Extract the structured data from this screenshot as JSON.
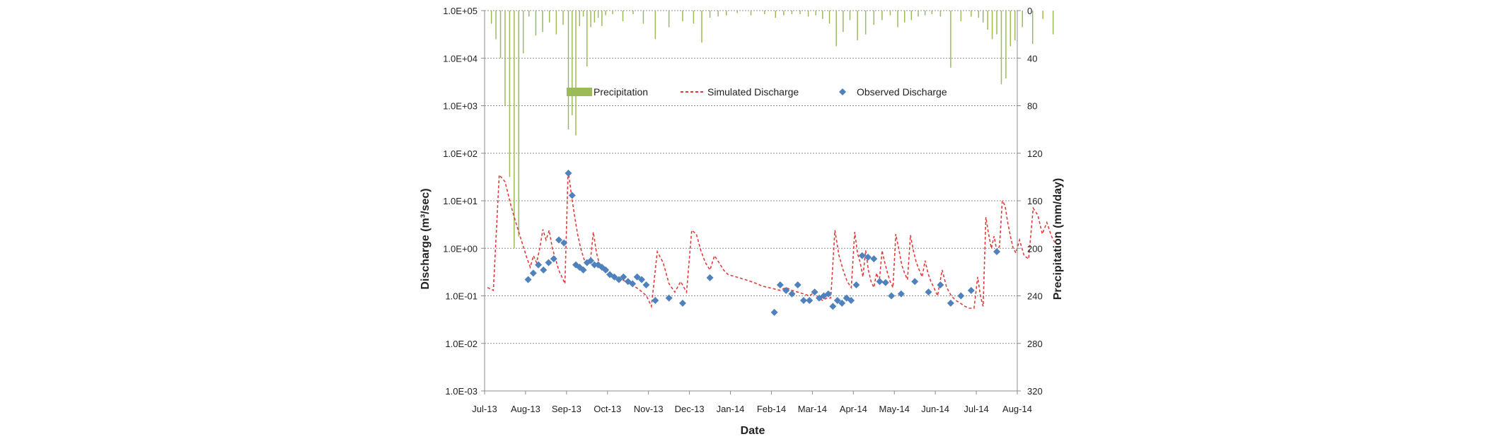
{
  "chart_data": {
    "type": "line",
    "xlabel": "Date",
    "ylabel": "Discharge (m³/sec)",
    "y2label": "Precipitation (mm/day)",
    "x_ticks": [
      "Jul-13",
      "Aug-13",
      "Sep-13",
      "Oct-13",
      "Nov-13",
      "Dec-13",
      "Jan-14",
      "Feb-14",
      "Mar-14",
      "Apr-14",
      "May-14",
      "Jun-14",
      "Jul-14",
      "Aug-14"
    ],
    "y_ticks": [
      "1.0E-03",
      "1.0E-02",
      "1.0E-01",
      "1.0E+00",
      "1.0E+01",
      "1.0E+02",
      "1.0E+03",
      "1.0E+04",
      "1.0E+05"
    ],
    "y2_ticks": [
      "0",
      "40",
      "80",
      "120",
      "160",
      "200",
      "240",
      "280",
      "320"
    ],
    "ylim": [
      "1.0E-03",
      "1.0E+05"
    ],
    "y_scale": "log",
    "y2lim": [
      0,
      320
    ],
    "y2_inverted": true,
    "grid": "horizontal dashed",
    "legend_position": "top-center, inside plot",
    "legend": [
      "Precipitation",
      "Simulated Discharge",
      "Observed Discharge"
    ],
    "colors": {
      "precipitation": "#9bbb59",
      "simulated": "#e03c3c",
      "observed": "#4f81bd",
      "grid": "#8c8c8c",
      "axis": "#8c8c8c"
    },
    "series": [
      {
        "name": "Precipitation",
        "type": "bar",
        "axis": "y2",
        "points": [
          [
            "Jul-13",
            0
          ],
          [
            "Jul-13",
            11
          ],
          [
            "Jul-13",
            24
          ],
          [
            "Jul-13",
            40
          ],
          [
            "Jul-13",
            80
          ],
          [
            "Jul-13",
            140
          ],
          [
            "Jul-13",
            200
          ],
          [
            "Jul-13",
            190
          ],
          [
            "Jul-13",
            36
          ],
          [
            "Aug-13",
            5
          ],
          [
            "Aug-13",
            21
          ],
          [
            "Aug-13",
            18
          ],
          [
            "Aug-13",
            10
          ],
          [
            "Aug-13",
            20
          ],
          [
            "Aug-13",
            12
          ],
          [
            "Sep-13",
            100
          ],
          [
            "Sep-13",
            88
          ],
          [
            "Sep-13",
            105
          ],
          [
            "Sep-13",
            13
          ],
          [
            "Sep-13",
            5
          ],
          [
            "Sep-13",
            47
          ],
          [
            "Sep-13",
            14
          ],
          [
            "Sep-13",
            10
          ],
          [
            "Sep-13",
            6
          ],
          [
            "Sep-13",
            13
          ],
          [
            "Sep-13",
            4
          ],
          [
            "Oct-13",
            3
          ],
          [
            "Oct-13",
            9
          ],
          [
            "Oct-13",
            3
          ],
          [
            "Oct-13",
            11
          ],
          [
            "Nov-13",
            24
          ],
          [
            "Nov-13",
            14
          ],
          [
            "Nov-13",
            9
          ],
          [
            "Dec-13",
            11
          ],
          [
            "Dec-13",
            27
          ],
          [
            "Dec-13",
            6
          ],
          [
            "Dec-13",
            5
          ],
          [
            "Dec-13",
            4
          ],
          [
            "Jan-14",
            2
          ],
          [
            "Jan-14",
            4
          ],
          [
            "Jan-14",
            3
          ],
          [
            "Feb-14",
            6
          ],
          [
            "Feb-14",
            4
          ],
          [
            "Feb-14",
            3
          ],
          [
            "Feb-14",
            3
          ],
          [
            "Feb-14",
            5
          ],
          [
            "Mar-14",
            4
          ],
          [
            "Mar-14",
            7
          ],
          [
            "Mar-14",
            11
          ],
          [
            "Mar-14",
            30
          ],
          [
            "Mar-14",
            18
          ],
          [
            "Mar-14",
            8
          ],
          [
            "Apr-14",
            25
          ],
          [
            "Apr-14",
            20
          ],
          [
            "Apr-14",
            12
          ],
          [
            "Apr-14",
            8
          ],
          [
            "Apr-14",
            4
          ],
          [
            "May-14",
            14
          ],
          [
            "May-14",
            10
          ],
          [
            "May-14",
            8
          ],
          [
            "May-14",
            5
          ],
          [
            "May-14",
            4
          ],
          [
            "May-14",
            3
          ],
          [
            "Jun-14",
            5
          ],
          [
            "Jun-14",
            48
          ],
          [
            "Jun-14",
            9
          ],
          [
            "Jun-14",
            5
          ],
          [
            "Jul-14",
            6
          ],
          [
            "Jul-14",
            10
          ],
          [
            "Jul-14",
            16
          ],
          [
            "Jul-14",
            24
          ],
          [
            "Jul-14",
            20
          ],
          [
            "Jul-14",
            62
          ],
          [
            "Jul-14",
            57
          ],
          [
            "Jul-14",
            30
          ],
          [
            "Jul-14",
            25
          ],
          [
            "Aug-14",
            14
          ],
          [
            "Aug-14",
            28
          ],
          [
            "Aug-14",
            7
          ],
          [
            "Aug-14",
            20
          ]
        ]
      },
      {
        "name": "Simulated Discharge",
        "type": "line",
        "axis": "y",
        "points": [
          [
            "Jul-13",
            0.15
          ],
          [
            "Jul-13",
            0.13
          ],
          [
            "Jul-13",
            35
          ],
          [
            "Jul-13",
            25
          ],
          [
            "Jul-13",
            8
          ],
          [
            "Jul-13",
            3
          ],
          [
            "Jul-13",
            1.2
          ],
          [
            "Aug-13",
            0.6
          ],
          [
            "Aug-13",
            0.4
          ],
          [
            "Aug-13",
            0.7
          ],
          [
            "Aug-13",
            0.5
          ],
          [
            "Aug-13",
            1.0
          ],
          [
            "Aug-13",
            2.5
          ],
          [
            "Aug-13",
            1.5
          ],
          [
            "Aug-13",
            2.4
          ],
          [
            "Aug-13",
            1.0
          ],
          [
            "Aug-13",
            0.6
          ],
          [
            "Aug-13",
            0.35
          ],
          [
            "Aug-13",
            0.25
          ],
          [
            "Aug-13",
            0.18
          ],
          [
            "Sep-13",
            45
          ],
          [
            "Sep-13",
            14
          ],
          [
            "Sep-13",
            5
          ],
          [
            "Sep-13",
            2
          ],
          [
            "Sep-13",
            1.0
          ],
          [
            "Sep-13",
            0.6
          ],
          [
            "Sep-13",
            0.45
          ],
          [
            "Sep-13",
            0.5
          ],
          [
            "Sep-13",
            2.2
          ],
          [
            "Sep-13",
            0.8
          ],
          [
            "Sep-13",
            0.45
          ],
          [
            "Sep-13",
            0.38
          ],
          [
            "Sep-13",
            0.35
          ],
          [
            "Oct-13",
            0.3
          ],
          [
            "Oct-13",
            0.28
          ],
          [
            "Oct-13",
            0.24
          ],
          [
            "Oct-13",
            0.22
          ],
          [
            "Oct-13",
            0.2
          ],
          [
            "Oct-13",
            0.18
          ],
          [
            "Oct-13",
            0.16
          ],
          [
            "Oct-13",
            0.14
          ],
          [
            "Oct-13",
            0.12
          ],
          [
            "Oct-13",
            0.1
          ],
          [
            "Nov-13",
            0.06
          ],
          [
            "Nov-13",
            0.85
          ],
          [
            "Nov-13",
            0.5
          ],
          [
            "Nov-13",
            0.18
          ],
          [
            "Nov-13",
            0.12
          ],
          [
            "Nov-13",
            0.2
          ],
          [
            "Nov-13",
            0.12
          ],
          [
            "Dec-13",
            2.4
          ],
          [
            "Dec-13",
            2.0
          ],
          [
            "Dec-13",
            0.9
          ],
          [
            "Dec-13",
            0.5
          ],
          [
            "Dec-13",
            0.35
          ],
          [
            "Dec-13",
            0.7
          ],
          [
            "Dec-13",
            0.5
          ],
          [
            "Dec-13",
            0.35
          ],
          [
            "Dec-13",
            0.28
          ],
          [
            "Jan-14",
            0.26
          ],
          [
            "Jan-14",
            0.24
          ],
          [
            "Jan-14",
            0.22
          ],
          [
            "Jan-14",
            0.2
          ],
          [
            "Jan-14",
            0.18
          ],
          [
            "Jan-14",
            0.16
          ],
          [
            "Jan-14",
            0.15
          ],
          [
            "Feb-14",
            0.14
          ],
          [
            "Feb-14",
            0.13
          ],
          [
            "Feb-14",
            0.15
          ],
          [
            "Feb-14",
            0.13
          ],
          [
            "Feb-14",
            0.12
          ],
          [
            "Feb-14",
            0.11
          ],
          [
            "Feb-14",
            0.1
          ],
          [
            "Mar-14",
            0.12
          ],
          [
            "Mar-14",
            0.09
          ],
          [
            "Mar-14",
            0.08
          ],
          [
            "Mar-14",
            0.09
          ],
          [
            "Mar-14",
            0.09
          ],
          [
            "Mar-14",
            2.4
          ],
          [
            "Mar-14",
            0.7
          ],
          [
            "Mar-14",
            0.35
          ],
          [
            "Mar-14",
            0.2
          ],
          [
            "Mar-14",
            0.15
          ],
          [
            "Apr-14",
            2.2
          ],
          [
            "Apr-14",
            0.8
          ],
          [
            "Apr-14",
            0.5
          ],
          [
            "Apr-14",
            0.25
          ],
          [
            "Apr-14",
            0.9
          ],
          [
            "Apr-14",
            0.35
          ],
          [
            "Apr-14",
            0.2
          ],
          [
            "Apr-14",
            0.15
          ],
          [
            "Apr-14",
            0.3
          ],
          [
            "Apr-14",
            0.2
          ],
          [
            "Apr-14",
            0.9
          ],
          [
            "Apr-14",
            0.5
          ],
          [
            "Apr-14",
            0.3
          ],
          [
            "Apr-14",
            0.2
          ],
          [
            "Apr-14",
            0.15
          ],
          [
            "May-14",
            2.0
          ],
          [
            "May-14",
            1.0
          ],
          [
            "May-14",
            0.45
          ],
          [
            "May-14",
            0.3
          ],
          [
            "May-14",
            0.22
          ],
          [
            "May-14",
            1.9
          ],
          [
            "May-14",
            0.9
          ],
          [
            "May-14",
            0.5
          ],
          [
            "May-14",
            0.35
          ],
          [
            "May-14",
            0.25
          ],
          [
            "May-14",
            0.55
          ],
          [
            "May-14",
            0.3
          ],
          [
            "May-14",
            0.2
          ],
          [
            "May-14",
            0.15
          ],
          [
            "Jun-14",
            0.1
          ],
          [
            "Jun-14",
            0.35
          ],
          [
            "Jun-14",
            0.15
          ],
          [
            "Jun-14",
            0.1
          ],
          [
            "Jun-14",
            0.08
          ],
          [
            "Jun-14",
            0.07
          ],
          [
            "Jun-14",
            0.06
          ],
          [
            "Jun-14",
            0.055
          ],
          [
            "Jun-14",
            0.055
          ],
          [
            "Jul-14",
            0.25
          ],
          [
            "Jul-14",
            0.1
          ],
          [
            "Jul-14",
            0.06
          ],
          [
            "Jul-14",
            4.5
          ],
          [
            "Jul-14",
            2
          ],
          [
            "Jul-14",
            1.0
          ],
          [
            "Jul-14",
            1.8
          ],
          [
            "Jul-14",
            0.9
          ],
          [
            "Jul-14",
            1.1
          ],
          [
            "Jul-14",
            10
          ],
          [
            "Jul-14",
            8
          ],
          [
            "Jul-14",
            3.5
          ],
          [
            "Jul-14",
            1.8
          ],
          [
            "Jul-14",
            1.0
          ],
          [
            "Jul-14",
            0.8
          ],
          [
            "Aug-14",
            1.5
          ],
          [
            "Aug-14",
            0.7
          ],
          [
            "Aug-14",
            0.6
          ],
          [
            "Aug-14",
            7
          ],
          [
            "Aug-14",
            5
          ],
          [
            "Aug-14",
            2
          ],
          [
            "Aug-14",
            3.5
          ],
          [
            "Aug-14",
            1.8
          ],
          [
            "Aug-14",
            1.2
          ]
        ]
      },
      {
        "name": "Observed Discharge",
        "type": "scatter",
        "axis": "y",
        "points": [
          [
            "Aug-13",
            0.22
          ],
          [
            "Aug-13",
            0.3
          ],
          [
            "Aug-13",
            0.45
          ],
          [
            "Aug-13",
            0.35
          ],
          [
            "Aug-13",
            0.5
          ],
          [
            "Aug-13",
            0.6
          ],
          [
            "Aug-13",
            1.5
          ],
          [
            "Aug-13",
            1.3
          ],
          [
            "Sep-13",
            38
          ],
          [
            "Sep-13",
            13
          ],
          [
            "Sep-13",
            0.45
          ],
          [
            "Sep-13",
            0.4
          ],
          [
            "Sep-13",
            0.35
          ],
          [
            "Sep-13",
            0.5
          ],
          [
            "Sep-13",
            0.55
          ],
          [
            "Sep-13",
            0.45
          ],
          [
            "Sep-13",
            0.45
          ],
          [
            "Sep-13",
            0.4
          ],
          [
            "Sep-13",
            0.35
          ],
          [
            "Oct-13",
            0.28
          ],
          [
            "Oct-13",
            0.25
          ],
          [
            "Oct-13",
            0.22
          ],
          [
            "Oct-13",
            0.25
          ],
          [
            "Oct-13",
            0.2
          ],
          [
            "Oct-13",
            0.18
          ],
          [
            "Oct-13",
            0.25
          ],
          [
            "Oct-13",
            0.22
          ],
          [
            "Oct-13",
            0.17
          ],
          [
            "Nov-13",
            0.08
          ],
          [
            "Nov-13",
            0.09
          ],
          [
            "Nov-13",
            0.07
          ],
          [
            "Dec-13",
            0.24
          ],
          [
            "Feb-14",
            0.045
          ],
          [
            "Feb-14",
            0.17
          ],
          [
            "Feb-14",
            0.13
          ],
          [
            "Feb-14",
            0.11
          ],
          [
            "Feb-14",
            0.17
          ],
          [
            "Feb-14",
            0.08
          ],
          [
            "Feb-14",
            0.08
          ],
          [
            "Mar-14",
            0.12
          ],
          [
            "Mar-14",
            0.09
          ],
          [
            "Mar-14",
            0.1
          ],
          [
            "Mar-14",
            0.11
          ],
          [
            "Mar-14",
            0.06
          ],
          [
            "Mar-14",
            0.08
          ],
          [
            "Mar-14",
            0.07
          ],
          [
            "Mar-14",
            0.09
          ],
          [
            "Mar-14",
            0.08
          ],
          [
            "Apr-14",
            0.17
          ],
          [
            "Apr-14",
            0.7
          ],
          [
            "Apr-14",
            0.65
          ],
          [
            "Apr-14",
            0.6
          ],
          [
            "Apr-14",
            0.2
          ],
          [
            "Apr-14",
            0.19
          ],
          [
            "Apr-14",
            0.1
          ],
          [
            "May-14",
            0.11
          ],
          [
            "May-14",
            0.2
          ],
          [
            "May-14",
            0.12
          ],
          [
            "Jun-14",
            0.17
          ],
          [
            "Jun-14",
            0.07
          ],
          [
            "Jun-14",
            0.1
          ],
          [
            "Jun-14",
            0.13
          ],
          [
            "Jul-14",
            0.85
          ]
        ]
      }
    ]
  }
}
